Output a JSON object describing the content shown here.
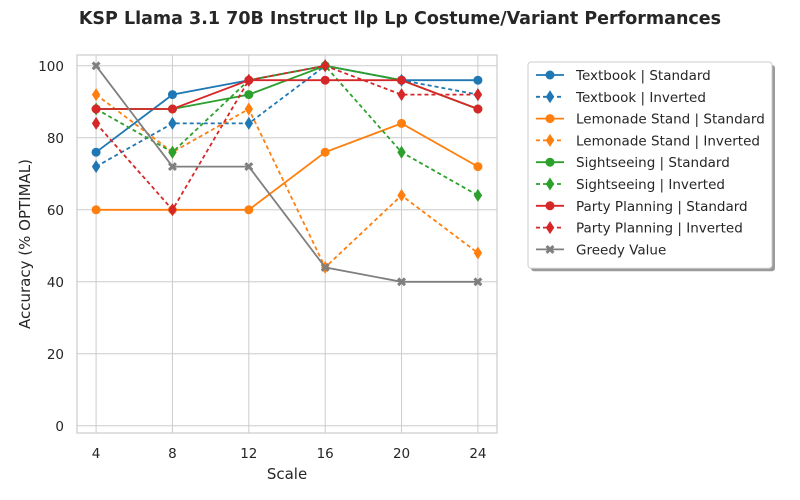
{
  "chart_data": {
    "type": "line",
    "title": "KSP Llama 3.1 70B Instruct llp Lp Costume/Variant Performances",
    "xlabel": "Scale",
    "ylabel": "Accuracy (% OPTIMAL)",
    "x": [
      4,
      8,
      12,
      16,
      20,
      24
    ],
    "xlim": [
      3,
      25
    ],
    "ylim": [
      -2,
      103
    ],
    "yticks": [
      0,
      20,
      40,
      60,
      80,
      100
    ],
    "grid": true,
    "legend_position": "outside-right",
    "series": [
      {
        "name": "Textbook | Standard",
        "color": "#1f77b4",
        "style": "solid",
        "marker": "circle",
        "values": [
          76,
          92,
          96,
          100,
          96,
          96
        ]
      },
      {
        "name": "Textbook | Inverted",
        "color": "#1f77b4",
        "style": "dashed",
        "marker": "diamond",
        "values": [
          72,
          84,
          84,
          100,
          96,
          92
        ]
      },
      {
        "name": "Lemonade Stand | Standard",
        "color": "#ff7f0e",
        "style": "solid",
        "marker": "circle",
        "values": [
          60,
          60,
          60,
          76,
          84,
          72
        ]
      },
      {
        "name": "Lemonade Stand | Inverted",
        "color": "#ff7f0e",
        "style": "dashed",
        "marker": "diamond",
        "values": [
          92,
          76,
          88,
          44,
          64,
          48
        ]
      },
      {
        "name": "Sightseeing | Standard",
        "color": "#2ca02c",
        "style": "solid",
        "marker": "circle",
        "values": [
          88,
          88,
          92,
          100,
          96,
          88
        ]
      },
      {
        "name": "Sightseeing | Inverted",
        "color": "#2ca02c",
        "style": "dashed",
        "marker": "diamond",
        "values": [
          88,
          76,
          96,
          100,
          76,
          64
        ]
      },
      {
        "name": "Party Planning | Standard",
        "color": "#d62728",
        "style": "solid",
        "marker": "circle",
        "values": [
          88,
          88,
          96,
          96,
          96,
          88
        ]
      },
      {
        "name": "Party Planning | Inverted",
        "color": "#d62728",
        "style": "dashed",
        "marker": "diamond",
        "values": [
          84,
          60,
          96,
          100,
          92,
          92
        ]
      },
      {
        "name": "Greedy Value",
        "color": "#7f7f7f",
        "style": "solid",
        "marker": "x",
        "values": [
          100,
          72,
          72,
          44,
          40,
          40
        ]
      }
    ]
  }
}
